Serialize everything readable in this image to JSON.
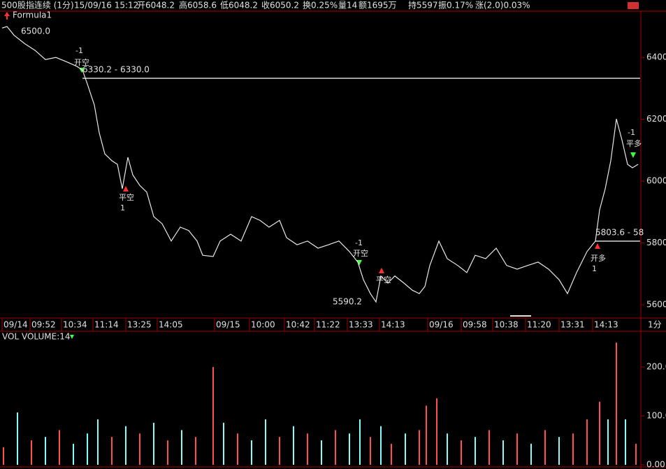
{
  "header": {
    "fields": [
      {
        "text": "500股指连续 (1分)",
        "color": "#e0e0e0"
      },
      {
        "text": "15/09/16 15:12",
        "color": "#e0e0e0"
      },
      {
        "text": "开6048.2",
        "color": "#ff6060"
      },
      {
        "text": "高6058.6",
        "color": "#ff6060"
      },
      {
        "text": "低6048.2",
        "color": "#60e0e0"
      },
      {
        "text": "收6050.2",
        "color": "#ff6060"
      },
      {
        "text": "换0.25%",
        "color": "#e0e0e0"
      },
      {
        "text": "量14",
        "color": "#e0e0e0"
      },
      {
        "text": "额1695万",
        "color": "#e0e0e0"
      },
      {
        "text": "持5597",
        "color": "#e0e0e0"
      },
      {
        "text": "振0.17%",
        "color": "#e0e0e0"
      },
      {
        "text": "涨(2.0)0.03%",
        "color": "#ff6060"
      }
    ],
    "annotations": [
      "6500.0",
      "6330.2 - 6330.0",
      "5590.2",
      "5803.6 - 58",
      "-1",
      "开空",
      "平空",
      "1",
      "-1",
      "开空",
      "平空",
      "-1",
      "平多",
      "开多",
      "1"
    ]
  },
  "chart_data": [
    {
      "type": "line",
      "legend": "Formula1",
      "color": "#e8e8e8",
      "x": [
        3,
        10,
        20,
        35,
        50,
        65,
        80,
        95,
        110,
        118,
        125,
        135,
        142,
        150,
        160,
        168,
        175,
        183,
        190,
        200,
        210,
        220,
        232,
        245,
        258,
        270,
        282,
        290,
        305,
        315,
        330,
        345,
        360,
        372,
        385,
        400,
        410,
        425,
        440,
        455,
        470,
        485,
        500,
        512,
        520,
        530,
        538,
        545,
        555,
        565,
        578,
        590,
        600,
        608,
        615,
        628,
        640,
        655,
        668,
        680,
        695,
        710,
        725,
        740,
        755,
        770,
        785,
        800,
        812,
        825,
        840,
        852,
        858,
        866,
        874,
        882,
        890,
        898,
        905,
        913
      ],
      "values": [
        6495,
        6500,
        6472,
        6445,
        6423,
        6393,
        6400,
        6386,
        6371,
        6359,
        6314,
        6246,
        6156,
        6088,
        6066,
        6054,
        5975,
        6077,
        6020,
        5986,
        5964,
        5885,
        5862,
        5806,
        5851,
        5840,
        5806,
        5760,
        5756,
        5806,
        5828,
        5806,
        5885,
        5873,
        5851,
        5873,
        5817,
        5794,
        5806,
        5783,
        5794,
        5806,
        5772,
        5738,
        5681,
        5636,
        5609,
        5693,
        5670,
        5693,
        5670,
        5647,
        5636,
        5659,
        5727,
        5806,
        5749,
        5727,
        5704,
        5760,
        5749,
        5783,
        5727,
        5715,
        5727,
        5738,
        5715,
        5681,
        5636,
        5704,
        5772,
        5806,
        5907,
        5975,
        6066,
        6201,
        6133,
        6054,
        6043,
        6054
      ],
      "xlim": [
        0,
        917
      ],
      "xticks": [
        {
          "value": 3,
          "label": "09/14"
        },
        {
          "value": 43,
          "label": "09:52"
        },
        {
          "value": 88,
          "label": "10:34"
        },
        {
          "value": 133,
          "label": "11:14"
        },
        {
          "value": 180,
          "label": "13:25"
        },
        {
          "value": 225,
          "label": "14:05"
        },
        {
          "value": 307,
          "label": "09/15"
        },
        {
          "value": 357,
          "label": "10:00"
        },
        {
          "value": 407,
          "label": "10:42"
        },
        {
          "value": 450,
          "label": "11:22"
        },
        {
          "value": 497,
          "label": "13:33"
        },
        {
          "value": 543,
          "label": "14:13"
        },
        {
          "value": 612,
          "label": "09/16"
        },
        {
          "value": 660,
          "label": "09:58"
        },
        {
          "value": 705,
          "label": "10:38"
        },
        {
          "value": 752,
          "label": "11:20"
        },
        {
          "value": 800,
          "label": "13:31"
        },
        {
          "value": 848,
          "label": "14:13"
        }
      ],
      "x_unit": "1分",
      "ylim": [
        5557,
        6545
      ],
      "yticks": [
        5600,
        5800,
        6000,
        6200,
        6400
      ]
    },
    {
      "type": "bar",
      "title": "VOL VOLUME:14",
      "x": [
        5,
        25,
        45,
        65,
        85,
        105,
        125,
        140,
        160,
        180,
        200,
        220,
        240,
        260,
        280,
        305,
        320,
        340,
        360,
        380,
        400,
        420,
        440,
        460,
        480,
        500,
        515,
        530,
        545,
        560,
        580,
        600,
        610,
        625,
        640,
        660,
        680,
        700,
        720,
        740,
        760,
        780,
        800,
        820,
        840,
        858,
        870,
        882,
        895,
        910
      ],
      "values": [
        36,
        107,
        50,
        57,
        71,
        43,
        64,
        93,
        57,
        79,
        64,
        86,
        50,
        71,
        57,
        200,
        86,
        64,
        50,
        93,
        57,
        79,
        64,
        50,
        71,
        64,
        93,
        57,
        79,
        43,
        64,
        71,
        121,
        136,
        64,
        50,
        57,
        71,
        50,
        64,
        43,
        71,
        57,
        64,
        93,
        129,
        93,
        250,
        93,
        43
      ],
      "colors": [
        "#ff5050",
        "#80ffff",
        "#ff5050",
        "#80ffff",
        "#ff5050",
        "#80ffff",
        "#80ffff",
        "#80ffff",
        "#ff5050",
        "#80ffff",
        "#ff5050",
        "#80ffff",
        "#ff5050",
        "#80ffff",
        "#ff5050",
        "#ff5050",
        "#80ffff",
        "#ff5050",
        "#80ffff",
        "#80ffff",
        "#ff5050",
        "#80ffff",
        "#ff5050",
        "#80ffff",
        "#ff5050",
        "#80ffff",
        "#80ffff",
        "#ff5050",
        "#80ffff",
        "#ff5050",
        "#80ffff",
        "#ff5050",
        "#ff5050",
        "#ff5050",
        "#80ffff",
        "#ff5050",
        "#80ffff",
        "#ff5050",
        "#80ffff",
        "#ff5050",
        "#80ffff",
        "#ff5050",
        "#80ffff",
        "#ff5050",
        "#ff5050",
        "#ff5050",
        "#80ffff",
        "#ff5050",
        "#80ffff",
        "#ff5050"
      ],
      "xlim": [
        0,
        917
      ],
      "ylim": [
        0,
        253
      ],
      "yticks": [
        {
          "value": 0,
          "label": "0.00"
        },
        {
          "value": 100,
          "label": "100.0"
        },
        {
          "value": 200,
          "label": "200.0"
        }
      ]
    }
  ]
}
